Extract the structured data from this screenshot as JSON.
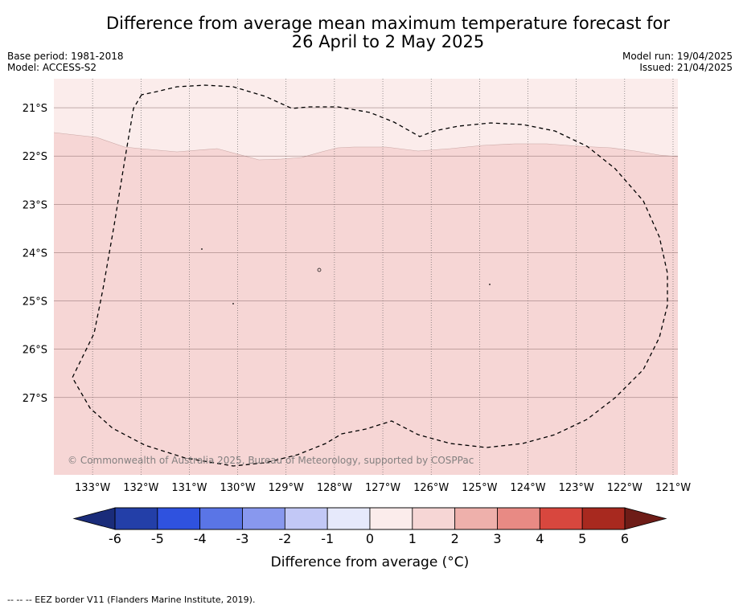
{
  "title_line1": "Difference from average mean maximum temperature forecast for",
  "title_line2": "26 April to 2 May 2025",
  "base_period": "Base period: 1981-2018",
  "model": "Model: ACCESS-S2",
  "model_run": "Model run: 19/04/2025",
  "issued": "Issued: 21/04/2025",
  "copyright": "© Commonwealth of Australia 2025, Bureau of Meteorology, supported by COSPPac",
  "footnote": "-- -- -- EEZ border V11 (Flanders Marine Institute, 2019).",
  "map": {
    "lat_labels": [
      "21°S",
      "22°S",
      "23°S",
      "24°S",
      "25°S",
      "26°S",
      "27°S"
    ],
    "lat_values": [
      -21,
      -22,
      -23,
      -24,
      -25,
      -26,
      -27
    ],
    "lon_labels": [
      "133°W",
      "132°W",
      "131°W",
      "130°W",
      "129°W",
      "128°W",
      "127°W",
      "126°W",
      "125°W",
      "124°W",
      "123°W",
      "122°W",
      "121°W"
    ],
    "lon_values": [
      -133,
      -132,
      -131,
      -130,
      -129,
      -128,
      -127,
      -126,
      -125,
      -124,
      -123,
      -122,
      -121
    ],
    "lon_range": [
      -133.8,
      -120.9
    ],
    "lat_range": [
      -28.6,
      -20.4
    ],
    "anomaly_regions": [
      {
        "range": "0 to 1",
        "color": "#fbeceb",
        "area": "northern strip"
      },
      {
        "range": "1 to 2",
        "color": "#f6d6d5",
        "area": "south of ~22°S"
      }
    ],
    "eez_border_style": "dashed"
  },
  "colorbar": {
    "label": "Difference from average (°C)",
    "tick_labels": [
      "-6",
      "-5",
      "-4",
      "-3",
      "-2",
      "-1",
      "0",
      "1",
      "2",
      "3",
      "4",
      "5",
      "6"
    ],
    "colors": [
      "#233fa8",
      "#2f52df",
      "#5a75e6",
      "#8898ee",
      "#c2c8f6",
      "#e6e9fb",
      "#fbeceb",
      "#f6d6d5",
      "#eeb0ab",
      "#e88a84",
      "#d8473e",
      "#a8291f"
    ],
    "under_color": "#1a2c7a",
    "over_color": "#6e1c17"
  }
}
